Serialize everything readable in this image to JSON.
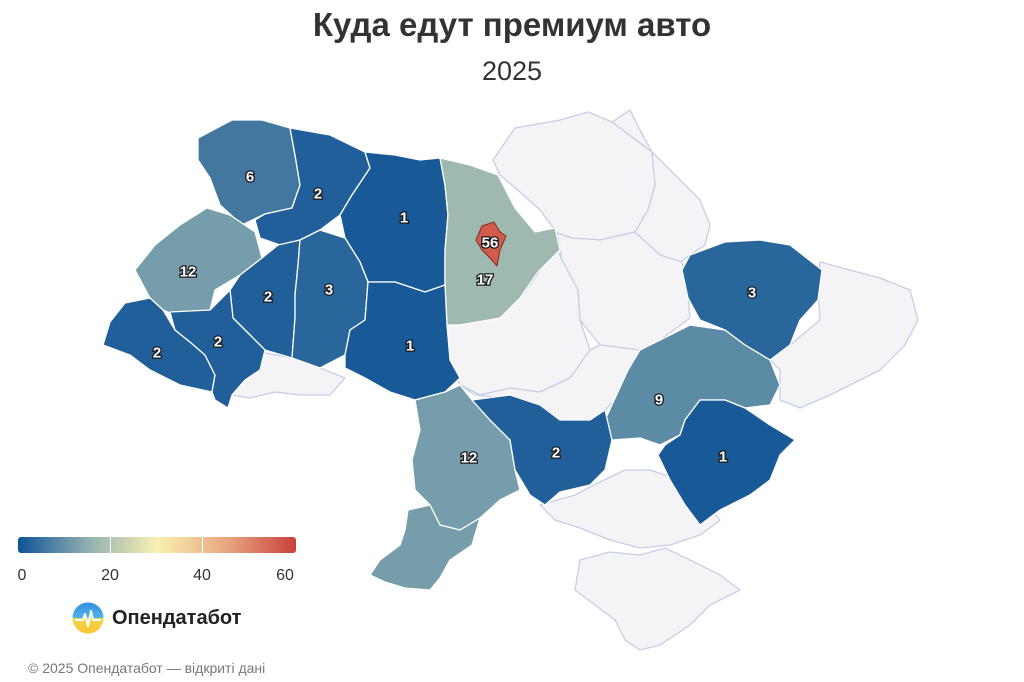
{
  "title": "Куда едут премиум авто",
  "subtitle": "2025",
  "legend": {
    "min": 0,
    "max": 60,
    "ticks": [
      "0",
      "20",
      "40",
      "60"
    ],
    "colors": [
      "#0f5396",
      "#8fb0b0",
      "#f9f0b2",
      "#e8a77f",
      "#c8413a"
    ]
  },
  "no_data_color": "#f4f4f7",
  "regions": [
    {
      "id": "volyn",
      "value": 6
    },
    {
      "id": "rivne",
      "value": 2
    },
    {
      "id": "zhytomyr",
      "value": 1
    },
    {
      "id": "kyiv-oblast",
      "value": 17
    },
    {
      "id": "kyiv-city",
      "value": 56
    },
    {
      "id": "lviv",
      "value": 12
    },
    {
      "id": "ternopil",
      "value": 2
    },
    {
      "id": "khmelnytskyi",
      "value": 3
    },
    {
      "id": "vinnytsia",
      "value": 1
    },
    {
      "id": "zakarpattia",
      "value": 2
    },
    {
      "id": "ivano-frankivsk",
      "value": 2
    },
    {
      "id": "kharkiv",
      "value": 3
    },
    {
      "id": "dnipropetrovsk",
      "value": 9
    },
    {
      "id": "zaporizhzhia",
      "value": 1
    },
    {
      "id": "mykolaiv",
      "value": 12
    },
    {
      "id": "kherson-north",
      "value": 2
    },
    {
      "id": "odesa",
      "value": null
    }
  ],
  "brand": {
    "name": "Опендатабот",
    "icon": "opendatabot-logo-icon"
  },
  "footer": "© 2025 Опендатабот — відкриті дані"
}
